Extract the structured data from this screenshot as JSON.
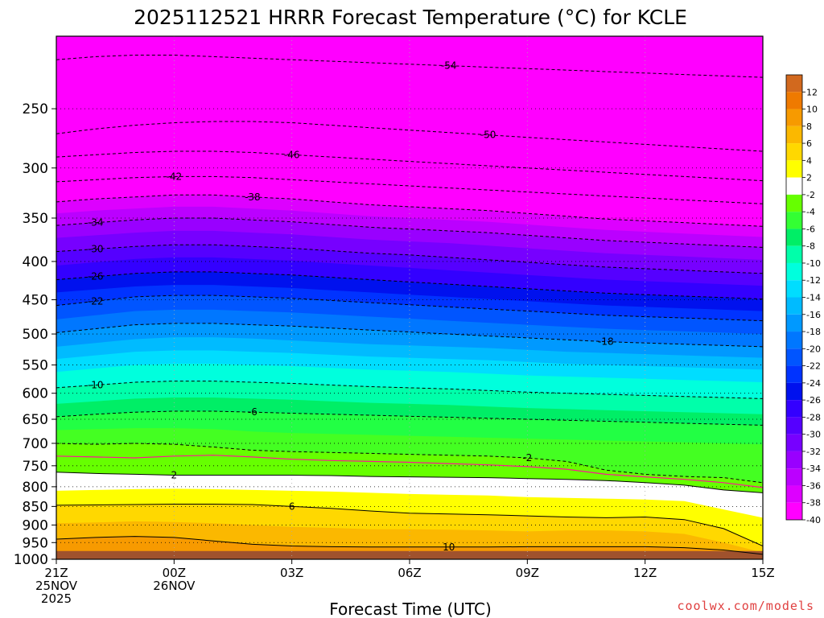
{
  "chart_data": {
    "type": "heatmap",
    "title": "2025112521 HRRR Forecast Temperature (°C) for KCLE",
    "xlabel": "Forecast Time (UTC)",
    "ylabel": "",
    "credit": "coolwx.com/models",
    "y_scale": "log-pressure",
    "ylim": [
      1000,
      200
    ],
    "y_ticks": [
      250,
      300,
      350,
      400,
      450,
      500,
      550,
      600,
      650,
      700,
      750,
      800,
      850,
      900,
      950,
      1000
    ],
    "x_ticks": [
      {
        "hour": 0,
        "lines": [
          "21Z",
          "25NOV",
          "2025"
        ]
      },
      {
        "hour": 3,
        "lines": [
          "00Z",
          "26NOV"
        ]
      },
      {
        "hour": 6,
        "lines": [
          "03Z"
        ]
      },
      {
        "hour": 9,
        "lines": [
          "06Z"
        ]
      },
      {
        "hour": 12,
        "lines": [
          "09Z"
        ]
      },
      {
        "hour": 15,
        "lines": [
          "12Z"
        ]
      },
      {
        "hour": 18,
        "lines": [
          "15Z"
        ]
      }
    ],
    "grid": true,
    "colorbar": {
      "levels": [
        "12",
        "10",
        "8",
        "6",
        "4",
        "2",
        "-2",
        "-4",
        "-6",
        "-8",
        "-10",
        "-12",
        "-14",
        "-16",
        "-18",
        "-20",
        "-22",
        "-24",
        "-26",
        "-28",
        "-30",
        "-32",
        "-34",
        "-36",
        "-38",
        "-40"
      ],
      "colors": [
        "#d2691e",
        "#ef7a00",
        "#f79a00",
        "#fbb800",
        "#ffd800",
        "#ffff00",
        "#ffffff",
        "#66ff00",
        "#33ff33",
        "#00ee66",
        "#00ffaa",
        "#00ffdd",
        "#00ddff",
        "#00bbff",
        "#0099ff",
        "#0077ff",
        "#0055ff",
        "#0033ff",
        "#0011ee",
        "#3300ff",
        "#5500ff",
        "#7700ff",
        "#9900ff",
        "#bb00ff",
        "#dd00ff",
        "#ff00ff"
      ]
    },
    "temperature_bands": [
      {
        "temp": 12,
        "color": "#ff8c00",
        "pressure": [
          1000,
          1000,
          1000,
          1000,
          1000,
          1000,
          1000,
          1000,
          1000,
          1000,
          1000,
          1000,
          1000,
          1000,
          1000,
          1000,
          1000,
          1000,
          1000
        ]
      },
      {
        "temp": 10,
        "color": "#f79a00",
        "pressure": [
          940,
          935,
          932,
          935,
          945,
          955,
          960,
          962,
          963,
          963,
          963,
          963,
          962,
          962,
          962,
          962,
          965,
          972,
          985
        ]
      },
      {
        "temp": 8,
        "color": "#fbb800",
        "pressure": [
          895,
          893,
          890,
          892,
          895,
          900,
          905,
          908,
          912,
          912,
          913,
          915,
          918,
          915,
          915,
          918,
          925,
          950,
          980
        ]
      },
      {
        "temp": 6,
        "color": "#ffd800",
        "pressure": [
          847,
          846,
          845,
          844,
          844,
          845,
          850,
          855,
          862,
          868,
          870,
          872,
          875,
          878,
          880,
          878,
          885,
          910,
          960
        ]
      },
      {
        "temp": 4,
        "color": "#ffff00",
        "pressure": [
          810,
          808,
          806,
          805,
          806,
          808,
          810,
          812,
          815,
          818,
          820,
          822,
          826,
          828,
          830,
          832,
          836,
          858,
          880
        ]
      },
      {
        "temp": 2,
        "color": "#ffffff",
        "pressure": [
          765,
          768,
          770,
          772,
          772,
          772,
          772,
          773,
          775,
          776,
          777,
          778,
          780,
          782,
          785,
          790,
          796,
          808,
          815
        ]
      },
      {
        "temp": -2,
        "color": "#66ff00",
        "pressure": [
          700,
          702,
          700,
          702,
          708,
          715,
          718,
          720,
          722,
          724,
          726,
          728,
          732,
          740,
          760,
          770,
          775,
          778,
          790
        ]
      },
      {
        "temp": -4,
        "color": "#44ff22",
        "pressure": [
          672,
          670,
          668,
          668,
          670,
          675,
          678,
          680,
          682,
          684,
          686,
          688,
          690,
          692,
          694,
          696,
          698,
          700,
          702
        ]
      },
      {
        "temp": -6,
        "color": "#22ff44",
        "pressure": [
          645,
          640,
          636,
          634,
          634,
          636,
          638,
          640,
          642,
          644,
          646,
          648,
          650,
          652,
          654,
          656,
          658,
          660,
          662
        ]
      },
      {
        "temp": -8,
        "color": "#00ee66",
        "pressure": [
          620,
          615,
          610,
          608,
          608,
          610,
          612,
          615,
          618,
          620,
          622,
          625,
          628,
          630,
          632,
          634,
          636,
          638,
          640
        ]
      },
      {
        "temp": -10,
        "color": "#00ffaa",
        "pressure": [
          590,
          585,
          580,
          578,
          578,
          580,
          582,
          585,
          588,
          590,
          592,
          595,
          598,
          600,
          602,
          604,
          606,
          608,
          610
        ]
      },
      {
        "temp": -12,
        "color": "#00ffdd",
        "pressure": [
          562,
          556,
          550,
          548,
          548,
          550,
          552,
          555,
          558,
          560,
          562,
          565,
          568,
          570,
          572,
          574,
          576,
          578,
          580
        ]
      },
      {
        "temp": -14,
        "color": "#00ddff",
        "pressure": [
          540,
          534,
          528,
          526,
          526,
          528,
          530,
          533,
          536,
          538,
          540,
          542,
          545,
          548,
          550,
          552,
          554,
          556,
          558
        ]
      },
      {
        "temp": -16,
        "color": "#00bbff",
        "pressure": [
          520,
          514,
          508,
          505,
          505,
          507,
          510,
          513,
          516,
          518,
          520,
          522,
          525,
          528,
          530,
          532,
          534,
          536,
          538
        ]
      },
      {
        "temp": -18,
        "color": "#0099ff",
        "pressure": [
          498,
          492,
          486,
          484,
          484,
          486,
          488,
          491,
          494,
          497,
          500,
          503,
          506,
          509,
          512,
          514,
          516,
          518,
          520
        ]
      },
      {
        "temp": -20,
        "color": "#0077ff",
        "pressure": [
          478,
          472,
          466,
          464,
          464,
          466,
          468,
          471,
          474,
          477,
          480,
          483,
          486,
          489,
          492,
          494,
          496,
          498,
          500
        ]
      },
      {
        "temp": -22,
        "color": "#0055ff",
        "pressure": [
          458,
          452,
          446,
          444,
          444,
          446,
          448,
          451,
          454,
          457,
          460,
          463,
          466,
          469,
          472,
          474,
          476,
          478,
          480
        ]
      },
      {
        "temp": -24,
        "color": "#0033ff",
        "pressure": [
          440,
          436,
          432,
          430,
          430,
          432,
          434,
          437,
          440,
          443,
          446,
          449,
          452,
          455,
          458,
          460,
          462,
          464,
          466
        ]
      },
      {
        "temp": -26,
        "color": "#0011ee",
        "pressure": [
          423,
          419,
          415,
          413,
          413,
          415,
          417,
          420,
          423,
          426,
          429,
          432,
          435,
          438,
          441,
          443,
          445,
          447,
          449
        ]
      },
      {
        "temp": -28,
        "color": "#3300ff",
        "pressure": [
          405,
          401,
          397,
          395,
          395,
          397,
          399,
          402,
          405,
          408,
          411,
          414,
          417,
          420,
          423,
          425,
          427,
          429,
          431
        ]
      },
      {
        "temp": -30,
        "color": "#5500ff",
        "pressure": [
          388,
          385,
          382,
          380,
          380,
          382,
          384,
          387,
          390,
          392,
          395,
          398,
          401,
          404,
          407,
          409,
          411,
          413,
          415
        ]
      },
      {
        "temp": -32,
        "color": "#7700ff",
        "pressure": [
          372,
          369,
          366,
          364,
          364,
          366,
          368,
          371,
          374,
          376,
          378,
          381,
          384,
          387,
          390,
          392,
          394,
          396,
          398
        ]
      },
      {
        "temp": -34,
        "color": "#9900ff",
        "pressure": [
          358,
          355,
          352,
          350,
          350,
          352,
          354,
          357,
          360,
          362,
          364,
          366,
          369,
          372,
          375,
          377,
          379,
          381,
          383
        ]
      },
      {
        "temp": -36,
        "color": "#bb00ff",
        "pressure": [
          345,
          342,
          340,
          338,
          338,
          340,
          342,
          345,
          348,
          350,
          352,
          354,
          357,
          360,
          363,
          365,
          367,
          369,
          371
        ]
      },
      {
        "temp": -38,
        "color": "#dd00ff",
        "pressure": [
          333,
          330,
          328,
          326,
          326,
          328,
          330,
          333,
          336,
          338,
          340,
          342,
          345,
          348,
          351,
          353,
          355,
          357,
          359
        ]
      },
      {
        "temp": -40,
        "color": "#ff00ff",
        "pressure": [
          322,
          319,
          316,
          314,
          314,
          316,
          318,
          321,
          324,
          326,
          328,
          330,
          333,
          336,
          339,
          341,
          343,
          345,
          347
        ]
      }
    ],
    "contour_lines": [
      {
        "label": "-54",
        "style": "dashed",
        "label_at": 10,
        "pressure": [
          215,
          213,
          212,
          212,
          213,
          214,
          215,
          216,
          217,
          218,
          219,
          220,
          221,
          222,
          223,
          224,
          225,
          226,
          227
        ]
      },
      {
        "label": "-50",
        "style": "dashed",
        "label_at": 11,
        "pressure": [
          270,
          266,
          263,
          261,
          260,
          260,
          261,
          263,
          265,
          267,
          269,
          271,
          273,
          275,
          277,
          279,
          281,
          283,
          285
        ]
      },
      {
        "label": "-46",
        "style": "dashed",
        "label_at": 6,
        "pressure": [
          290,
          288,
          286,
          285,
          285,
          286,
          288,
          290,
          292,
          294,
          296,
          298,
          300,
          302,
          304,
          306,
          308,
          310,
          312
        ]
      },
      {
        "label": "-42",
        "style": "dashed",
        "label_at": 3,
        "pressure": [
          313,
          311,
          309,
          308,
          308,
          309,
          311,
          313,
          315,
          317,
          319,
          321,
          323,
          325,
          327,
          329,
          331,
          333,
          335
        ]
      },
      {
        "label": "-38",
        "style": "dashed",
        "label_at": 5,
        "pressure": [
          333,
          330,
          328,
          326,
          326,
          328,
          330,
          333,
          336,
          338,
          340,
          342,
          345,
          348,
          351,
          353,
          355,
          357,
          359
        ]
      },
      {
        "label": "-34",
        "style": "dashed",
        "label_at": 1,
        "pressure": [
          358,
          355,
          352,
          350,
          350,
          352,
          354,
          357,
          360,
          362,
          364,
          366,
          369,
          372,
          375,
          377,
          379,
          381,
          383
        ]
      },
      {
        "label": "-30",
        "style": "dashed",
        "label_at": 1,
        "pressure": [
          388,
          385,
          382,
          380,
          380,
          382,
          384,
          387,
          390,
          392,
          395,
          398,
          401,
          404,
          407,
          409,
          411,
          413,
          415
        ]
      },
      {
        "label": "-26",
        "style": "dashed",
        "label_at": 1,
        "pressure": [
          423,
          419,
          415,
          413,
          413,
          415,
          417,
          420,
          423,
          426,
          429,
          432,
          435,
          438,
          441,
          443,
          445,
          447,
          449
        ]
      },
      {
        "label": "-22",
        "style": "dashed",
        "label_at": 1,
        "pressure": [
          458,
          452,
          446,
          444,
          444,
          446,
          448,
          451,
          454,
          457,
          460,
          463,
          466,
          469,
          472,
          474,
          476,
          478,
          480
        ]
      },
      {
        "label": "-18",
        "style": "dashed",
        "label_at": 14,
        "pressure": [
          498,
          492,
          486,
          484,
          484,
          486,
          488,
          491,
          494,
          497,
          500,
          503,
          506,
          509,
          512,
          514,
          516,
          518,
          520
        ]
      },
      {
        "label": "-10",
        "style": "dashed",
        "label_at": 1,
        "pressure": [
          590,
          585,
          580,
          578,
          578,
          580,
          582,
          585,
          588,
          590,
          592,
          595,
          598,
          600,
          602,
          604,
          606,
          608,
          610
        ]
      },
      {
        "label": "-6",
        "style": "dashed",
        "label_at": 5,
        "pressure": [
          645,
          640,
          636,
          634,
          634,
          636,
          638,
          640,
          642,
          644,
          646,
          648,
          650,
          652,
          654,
          656,
          658,
          660,
          662
        ]
      },
      {
        "label": "-2",
        "style": "dashed",
        "label_at": 12,
        "pressure": [
          700,
          702,
          700,
          702,
          708,
          715,
          718,
          720,
          722,
          724,
          726,
          728,
          732,
          740,
          760,
          770,
          775,
          778,
          790
        ]
      },
      {
        "label": "2",
        "style": "solid",
        "label_at": 3,
        "pressure": [
          765,
          768,
          770,
          772,
          772,
          772,
          772,
          773,
          775,
          776,
          777,
          778,
          780,
          782,
          785,
          790,
          796,
          808,
          815
        ]
      },
      {
        "label": "6",
        "style": "solid",
        "label_at": 6,
        "pressure": [
          847,
          846,
          845,
          844,
          844,
          845,
          850,
          855,
          862,
          868,
          870,
          872,
          875,
          878,
          880,
          878,
          885,
          910,
          960
        ]
      },
      {
        "label": "10",
        "style": "solid",
        "label_at": 10,
        "pressure": [
          940,
          935,
          932,
          935,
          945,
          955,
          960,
          962,
          963,
          963,
          963,
          963,
          962,
          962,
          962,
          962,
          965,
          972,
          985
        ]
      }
    ],
    "freezing_line": {
      "color": "#ff1493",
      "pressure": [
        728,
        730,
        732,
        728,
        726,
        730,
        735,
        738,
        740,
        742,
        745,
        748,
        752,
        758,
        770,
        776,
        782,
        790,
        802
      ]
    }
  }
}
